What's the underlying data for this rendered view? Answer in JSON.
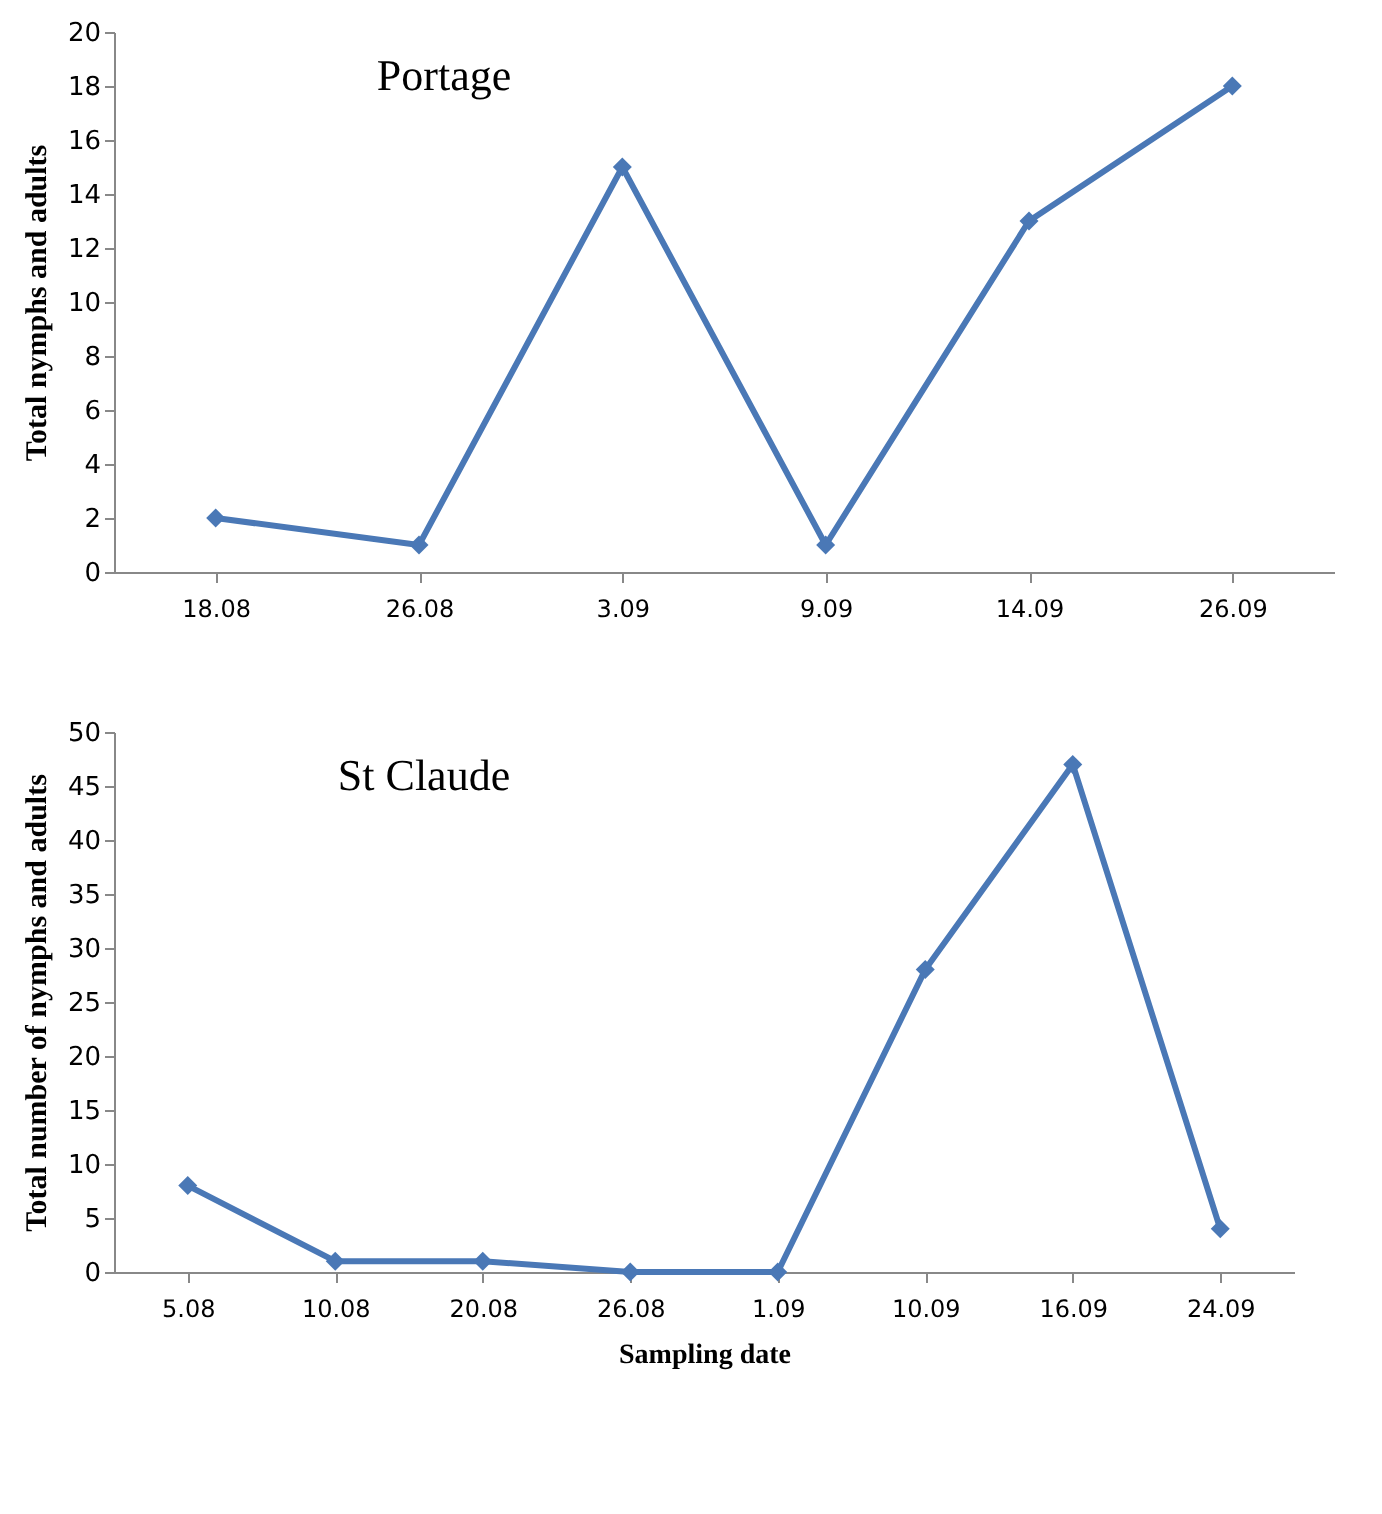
{
  "chart_data": [
    {
      "type": "line",
      "title": "Portage",
      "ylabel": "Total nymphs and adults",
      "categories": [
        "18.08",
        "26.08",
        "3.09",
        "9.09",
        "14.09",
        "26.09"
      ],
      "series": [
        {
          "color": "#4a78b6",
          "values": [
            2,
            1,
            15,
            1,
            13,
            18
          ]
        }
      ],
      "ylim": [
        0,
        20
      ],
      "yticks": [
        0,
        2,
        4,
        6,
        8,
        10,
        12,
        14,
        16,
        18,
        20
      ],
      "marker": "diamond"
    },
    {
      "type": "line",
      "title": "St Claude",
      "ylabel": "Total number of nymphs and adults",
      "xlabel": "Sampling date",
      "categories": [
        "5.08",
        "10.08",
        "20.08",
        "26.08",
        "1.09",
        "10.09",
        "16.09",
        "24.09"
      ],
      "series": [
        {
          "color": "#4a78b6",
          "values": [
            8,
            1,
            1,
            0,
            0,
            28,
            47,
            4
          ]
        }
      ],
      "ylim": [
        0,
        50
      ],
      "yticks": [
        0,
        5,
        10,
        15,
        20,
        25,
        30,
        35,
        40,
        45,
        50
      ],
      "marker": "diamond"
    }
  ]
}
